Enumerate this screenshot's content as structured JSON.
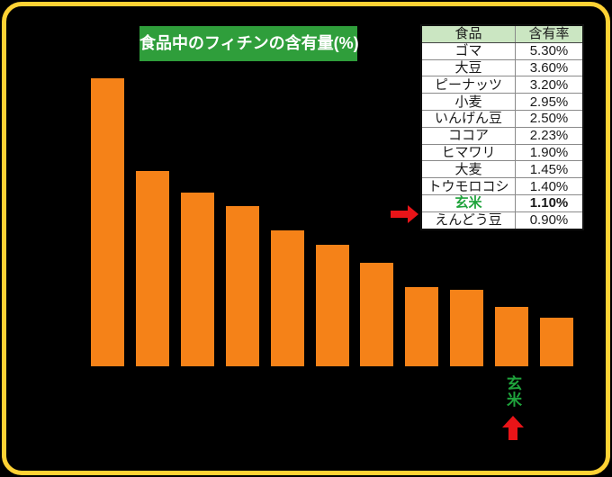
{
  "title": {
    "text": "食品中のフィチンの含有量(%)"
  },
  "table": {
    "headers": [
      "食品",
      "含有率"
    ],
    "rows": [
      {
        "food": "ゴマ",
        "rate": "5.30%",
        "highlight": false
      },
      {
        "food": "大豆",
        "rate": "3.60%",
        "highlight": false
      },
      {
        "food": "ピーナッツ",
        "rate": "3.20%",
        "highlight": false
      },
      {
        "food": "小麦",
        "rate": "2.95%",
        "highlight": false
      },
      {
        "food": "いんげん豆",
        "rate": "2.50%",
        "highlight": false
      },
      {
        "food": "ココア",
        "rate": "2.23%",
        "highlight": false
      },
      {
        "food": "ヒマワリ",
        "rate": "1.90%",
        "highlight": false
      },
      {
        "food": "大麦",
        "rate": "1.45%",
        "highlight": false
      },
      {
        "food": "トウモロコシ",
        "rate": "1.40%",
        "highlight": false
      },
      {
        "food": "玄米",
        "rate": "1.10%",
        "highlight": true
      },
      {
        "food": "えんどう豆",
        "rate": "0.90%",
        "highlight": false
      }
    ]
  },
  "chart_data": {
    "type": "bar",
    "title": "食品中のフィチンの含有量(%)",
    "categories": [
      "ゴマ",
      "大豆",
      "ピーナッツ",
      "小麦",
      "いんげん豆",
      "ココア",
      "ヒマワリ",
      "大麦",
      "トウモロコシ",
      "玄米",
      "えんどう豆"
    ],
    "values": [
      5.3,
      3.6,
      3.2,
      2.95,
      2.5,
      2.23,
      1.9,
      1.45,
      1.4,
      1.1,
      0.9
    ],
    "xlabel": "",
    "ylabel": "",
    "ylim": [
      0,
      5.5
    ],
    "grid": false,
    "legend": false,
    "category_labels_hidden": true,
    "highlight": {
      "index": 9,
      "label": "玄米"
    }
  },
  "colors": {
    "background": "#000000",
    "border": "#FFD234",
    "bar": "#F58218",
    "title_bg": "#2F9E3B",
    "title_text": "#FFFFFF",
    "table_header_bg": "#CBE6C2",
    "table_text": "#1A1A1A",
    "highlight_green": "#1FA33C",
    "arrow_red": "#E91418"
  }
}
